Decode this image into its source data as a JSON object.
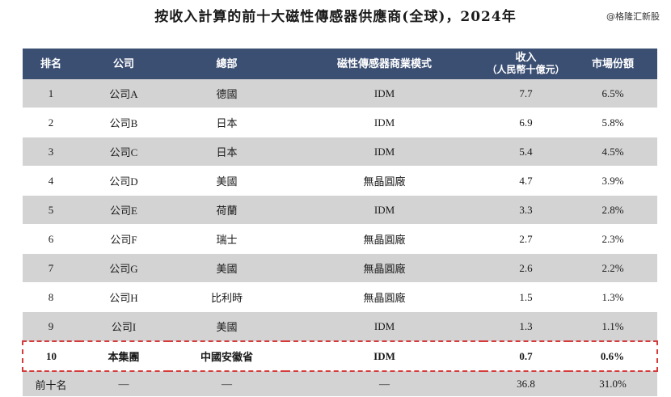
{
  "title": "按收入計算的前十大磁性傳感器供應商(全球)，2024年",
  "watermark": "@格隆汇新股",
  "table": {
    "headers": {
      "rank": "排名",
      "company": "公司",
      "hq": "總部",
      "model": "磁性傳感器商業模式",
      "revenue_line1": "收入",
      "revenue_line2": "（人民幣十億元）",
      "share": "市場份額"
    },
    "rows": [
      {
        "rank": "1",
        "company": "公司A",
        "hq": "德國",
        "model": "IDM",
        "revenue": "7.7",
        "share": "6.5%"
      },
      {
        "rank": "2",
        "company": "公司B",
        "hq": "日本",
        "model": "IDM",
        "revenue": "6.9",
        "share": "5.8%"
      },
      {
        "rank": "3",
        "company": "公司C",
        "hq": "日本",
        "model": "IDM",
        "revenue": "5.4",
        "share": "4.5%"
      },
      {
        "rank": "4",
        "company": "公司D",
        "hq": "美國",
        "model": "無晶圓廠",
        "revenue": "4.7",
        "share": "3.9%"
      },
      {
        "rank": "5",
        "company": "公司E",
        "hq": "荷蘭",
        "model": "IDM",
        "revenue": "3.3",
        "share": "2.8%"
      },
      {
        "rank": "6",
        "company": "公司F",
        "hq": "瑞士",
        "model": "無晶圓廠",
        "revenue": "2.7",
        "share": "2.3%"
      },
      {
        "rank": "7",
        "company": "公司G",
        "hq": "美國",
        "model": "無晶圓廠",
        "revenue": "2.6",
        "share": "2.2%"
      },
      {
        "rank": "8",
        "company": "公司H",
        "hq": "比利時",
        "model": "無晶圓廠",
        "revenue": "1.5",
        "share": "1.3%"
      },
      {
        "rank": "9",
        "company": "公司I",
        "hq": "美國",
        "model": "IDM",
        "revenue": "1.3",
        "share": "1.1%"
      },
      {
        "rank": "10",
        "company": "本集團",
        "hq": "中國安徽省",
        "model": "IDM",
        "revenue": "0.7",
        "share": "0.6%"
      }
    ],
    "total": {
      "label": "前十名",
      "company": "—",
      "hq": "—",
      "model": "—",
      "revenue": "36.8",
      "share": "31.0%"
    }
  },
  "colors": {
    "header_bg": "#3b4f73",
    "stripe": "#d3d3d3",
    "highlight_border": "#d63b3b"
  }
}
